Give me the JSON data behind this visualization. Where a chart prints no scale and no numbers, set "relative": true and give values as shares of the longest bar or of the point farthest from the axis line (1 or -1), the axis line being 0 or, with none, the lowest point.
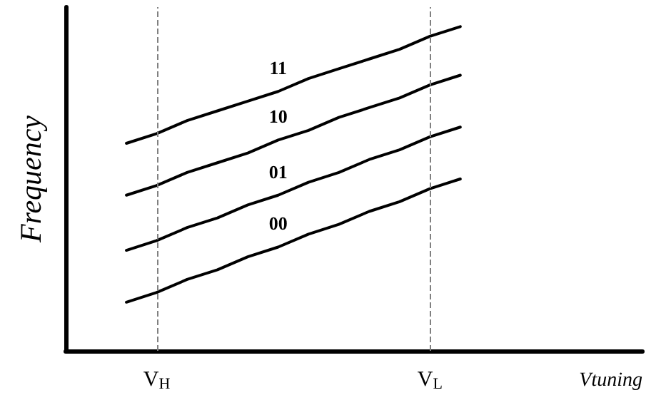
{
  "chart_data": {
    "type": "line",
    "relative": true,
    "xlabel": "Vtuning",
    "ylabel": "Frequency",
    "categories": [
      null,
      null,
      null,
      "V$_{H}$",
      null,
      null,
      null,
      null,
      null,
      null,
      null,
      null,
      "V$_{L}$",
      null,
      null,
      null,
      null,
      null,
      null,
      null
    ],
    "tick_labels": "x",
    "series": [
      {
        "name": "00",
        "color": "#000000",
        "values": [
          null,
          null,
          0.15,
          0.18,
          0.22,
          0.25,
          0.29,
          0.32,
          0.36,
          0.39,
          0.43,
          0.46,
          0.5,
          0.53,
          null,
          null,
          null,
          null,
          null,
          null
        ]
      },
      {
        "name": "01",
        "color": "#000000",
        "values": [
          null,
          null,
          0.31,
          0.34,
          0.38,
          0.41,
          0.45,
          0.48,
          0.52,
          0.55,
          0.59,
          0.62,
          0.66,
          0.69,
          null,
          null,
          null,
          null,
          null,
          null
        ]
      },
      {
        "name": "10",
        "color": "#000000",
        "values": [
          null,
          null,
          0.48,
          0.51,
          0.55,
          0.58,
          0.61,
          0.65,
          0.68,
          0.72,
          0.75,
          0.78,
          0.82,
          0.85,
          null,
          null,
          null,
          null,
          null,
          null
        ]
      },
      {
        "name": "11",
        "color": "#000000",
        "values": [
          null,
          null,
          0.64,
          0.67,
          0.71,
          0.74,
          0.77,
          0.8,
          0.84,
          0.87,
          0.9,
          0.93,
          0.97,
          1,
          null,
          null,
          null,
          null,
          null,
          null
        ]
      }
    ],
    "ref_lines": [
      {
        "axis": "x",
        "value": "V$_{H}$",
        "color": "#808080",
        "line_style": "dashed"
      },
      {
        "axis": "x",
        "value": "V$_{L}$",
        "color": "#808080",
        "line_style": "dashed"
      }
    ],
    "legend": false,
    "grid": false,
    "marker": "none",
    "line_style": "solid"
  }
}
